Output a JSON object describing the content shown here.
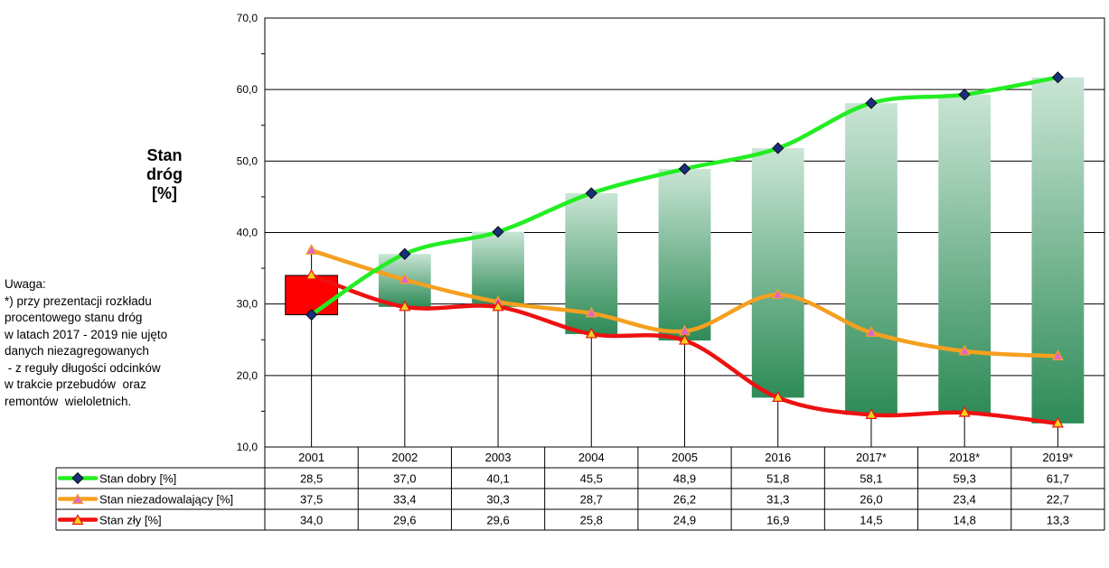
{
  "chart_data": {
    "type": "line",
    "ylabel_lines": [
      "Stan",
      "dróg",
      "[%]"
    ],
    "categories": [
      "2001",
      "2002",
      "2003",
      "2004",
      "2005",
      "2016",
      "2017*",
      "2018*",
      "2019*"
    ],
    "ylim": [
      10,
      70
    ],
    "yticks": [
      "10,0",
      "20,0",
      "30,0",
      "40,0",
      "50,0",
      "60,0",
      "70,0"
    ],
    "grid": true,
    "legend_position": "data-table-left",
    "series": [
      {
        "name": "Stan dobry [%]",
        "values": [
          28.5,
          37.0,
          40.1,
          45.5,
          48.9,
          51.8,
          58.1,
          59.3,
          61.7
        ],
        "labels": [
          "28,5",
          "37,0",
          "40,1",
          "45,5",
          "48,9",
          "51,8",
          "58,1",
          "59,3",
          "61,7"
        ],
        "color": "#22ee22",
        "marker": "diamond",
        "marker_color": "#1a2f7a"
      },
      {
        "name": "Stan niezadowalający [%]",
        "values": [
          37.5,
          33.4,
          30.3,
          28.7,
          26.2,
          31.3,
          26.0,
          23.4,
          22.7
        ],
        "labels": [
          "37,5",
          "33,4",
          "30,3",
          "28,7",
          "26,2",
          "31,3",
          "26,0",
          "23,4",
          "22,7"
        ],
        "color": "#f5a020",
        "marker": "triangle",
        "marker_color": "#e066c8"
      },
      {
        "name": "Stan zły  [%]",
        "values": [
          34.0,
          29.6,
          29.6,
          25.8,
          24.9,
          16.9,
          14.5,
          14.8,
          13.3
        ],
        "labels": [
          "34,0",
          "29,6",
          "29,6",
          "25,8",
          "24,9",
          "16,9",
          "14,5",
          "14,8",
          "13,3"
        ],
        "color": "#ee1111",
        "marker": "triangle",
        "marker_color": "#f0d020"
      }
    ],
    "range_bars": {
      "up_color": "#2e8b57",
      "down_color": "#ff0000"
    }
  },
  "note_lines": [
    "Uwaga:",
    "*) przy prezentacji rozkładu",
    "procentowego stanu dróg",
    "w latach 2017 - 2019 nie ujęto",
    "danych niezagregowanych",
    " - z reguły długości odcinków",
    "w trakcie przebudów  oraz",
    "remontów  wieloletnich."
  ]
}
